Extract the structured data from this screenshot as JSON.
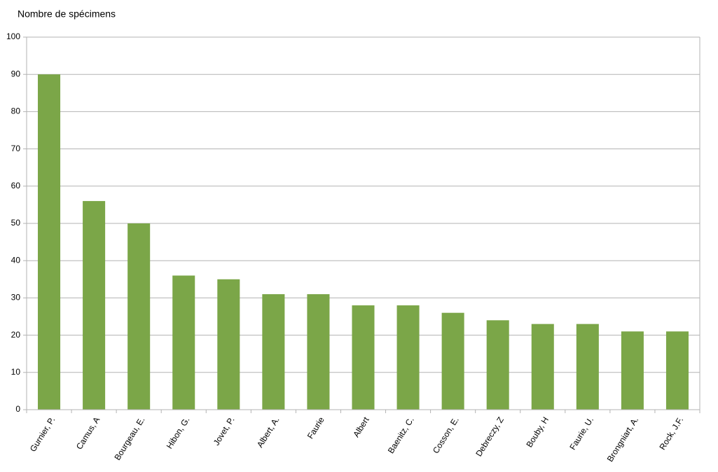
{
  "chart_data": {
    "type": "bar",
    "y_label": "Nombre de spécimens",
    "categories": [
      "Gurnier, P.",
      "Camus, A",
      "Bourgeau, E.",
      "Hibon, G.",
      "Jovet, P.",
      "Albert, A.",
      "Faurie",
      "Albert",
      "Baenitz, C.",
      "Cosson, E.",
      "Debreczy, Z",
      "Bouby, H",
      "Faurie, U.",
      "Brongniart, A.",
      "Rock, J.F."
    ],
    "values": [
      90,
      56,
      50,
      36,
      35,
      31,
      31,
      28,
      28,
      26,
      24,
      23,
      23,
      21,
      21
    ],
    "color": "#7ba648",
    "ylim": [
      0,
      100
    ],
    "yticks": [
      0,
      10,
      20,
      30,
      40,
      50,
      60,
      70,
      80,
      90,
      100
    ],
    "grid": true
  }
}
